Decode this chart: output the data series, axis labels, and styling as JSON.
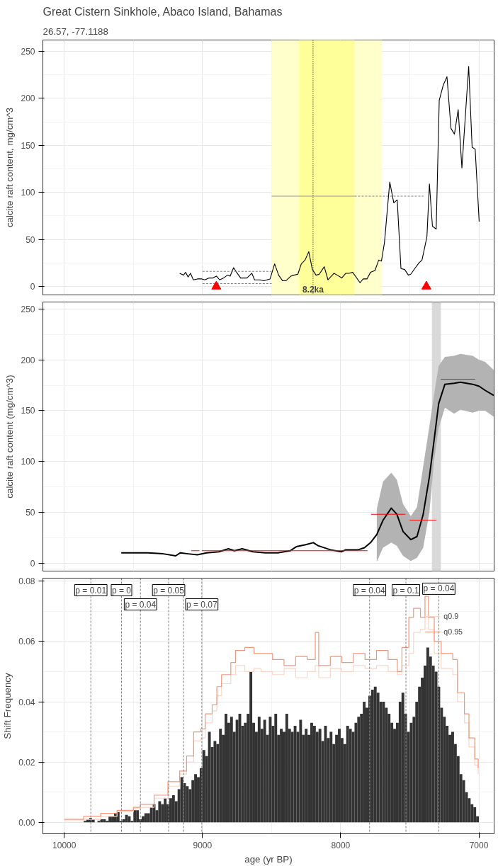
{
  "chart_data": [
    {
      "type": "line",
      "title": "Great Cistern Sinkhole, Abaco Island, Bahamas",
      "subtitle": "26.57, -77.1188",
      "ylabel": "calcite raft content, mg/cm^3",
      "xlim": [
        10155,
        6890
      ],
      "xticks": [
        10000,
        9000,
        8000,
        7000
      ],
      "ylim": [
        -9,
        262
      ],
      "yticks": [
        0,
        50,
        100,
        150,
        200,
        250
      ],
      "tick_labels": "y",
      "grid": true,
      "bands": [
        {
          "axis": "x",
          "from": 8500,
          "to": 7700,
          "color": "#ffffcc"
        },
        {
          "axis": "x",
          "from": 8300,
          "to": 7900,
          "color": "#ffff99"
        }
      ],
      "ref_lines": [
        {
          "axis": "x",
          "value": 8200,
          "label": "8.2ka",
          "color": "#000000",
          "line_style": "dotted"
        }
      ],
      "series": [
        {
          "type": "line",
          "color": "#000000",
          "x": [
            9165,
            9138,
            9122,
            9104,
            9087,
            9066,
            9037,
            9004,
            8984,
            8952,
            8925,
            8899,
            8876,
            8847,
            8820,
            8800,
            8775,
            8753,
            8724,
            8679,
            8643,
            8623,
            8585,
            8556,
            8511,
            8478,
            8449,
            8420,
            8397,
            8361,
            8339,
            8310,
            8285,
            8258,
            8231,
            8205,
            8178,
            8155,
            8119,
            8092,
            8048,
            8025,
            7992,
            7963,
            7940,
            7913,
            7860,
            7837,
            7810,
            7784,
            7752,
            7725,
            7705,
            7683,
            7645,
            7616,
            7591,
            7564,
            7537,
            7510,
            7493,
            7464,
            7434,
            7412,
            7390,
            7376,
            7358,
            7336,
            7309,
            7287,
            7258,
            7231,
            7202,
            7177,
            7150,
            7123,
            7074,
            7049,
            7027,
            6998
          ],
          "values": [
            14,
            12,
            15,
            10,
            14,
            7,
            8,
            8,
            7,
            9,
            9,
            11,
            7,
            9,
            12,
            11,
            20,
            15,
            9,
            9,
            14,
            7,
            7,
            6,
            8,
            24,
            12,
            6,
            6,
            11,
            12,
            13,
            24,
            28,
            37,
            18,
            12,
            13,
            21,
            7,
            14,
            12,
            9,
            14,
            14,
            15,
            4,
            8,
            8,
            15,
            17,
            28,
            27,
            47,
            111,
            89,
            92,
            19,
            18,
            12,
            13,
            19,
            25,
            28,
            43,
            53,
            109,
            64,
            61,
            198,
            214,
            223,
            168,
            162,
            188,
            126,
            234,
            148,
            146,
            69
          ]
        },
        {
          "type": "line",
          "color": "#808080",
          "line_style": "dashed",
          "x": [
            9000,
            8500
          ],
          "values": [
            16,
            16
          ]
        },
        {
          "type": "line",
          "color": "#808080",
          "line_style": "dashed",
          "x": [
            9000,
            8500
          ],
          "values": [
            3,
            3
          ]
        },
        {
          "type": "line",
          "color": "#999999",
          "x": [
            8500,
            7900
          ],
          "values": [
            96,
            96
          ]
        },
        {
          "type": "line",
          "color": "#808080",
          "line_style": "dashed",
          "x": [
            7900,
            7400
          ],
          "values": [
            96,
            96
          ]
        },
        {
          "type": "scatter",
          "color": "#ff0000",
          "marker": "triangle",
          "x": [
            8900,
            7380
          ],
          "values": [
            0,
            0
          ]
        }
      ]
    },
    {
      "type": "line",
      "ylabel": "calcite raft content (mg/cm^3)",
      "xlim": [
        10155,
        6890
      ],
      "xticks": [
        10000,
        9000,
        8000,
        7000
      ],
      "ylim": [
        -8,
        257
      ],
      "yticks": [
        0,
        50,
        100,
        150,
        200,
        250
      ],
      "tick_labels": "y",
      "grid": true,
      "bands": [
        {
          "axis": "x",
          "from": 7340,
          "to": 7275,
          "color": "#d9d9d9"
        }
      ],
      "series": [
        {
          "type": "line",
          "color": "#000000",
          "x": [
            9588,
            9396,
            9284,
            9194,
            9160,
            9104,
            9037,
            8970,
            8881,
            8813,
            8769,
            8713,
            8634,
            8545,
            8455,
            8366,
            8321,
            8254,
            8198,
            8164,
            8075,
            7996,
            7963,
            7873,
            7828,
            7784,
            7739,
            7694,
            7634,
            7594,
            7549,
            7493,
            7448,
            7403,
            7358,
            7325,
            7291,
            7246,
            7179,
            7134,
            7045,
            6998,
            6955,
            6893
          ],
          "values": [
            10,
            10,
            9,
            7,
            10,
            9,
            8,
            10,
            11,
            14,
            12,
            14,
            11,
            10,
            10,
            12,
            16,
            18,
            20,
            17,
            13,
            11,
            13,
            13,
            15,
            20,
            28,
            42,
            54,
            48,
            31,
            23,
            26,
            48,
            85,
            120,
            157,
            176,
            177,
            178,
            176,
            174,
            170,
            165
          ],
          "lower": [
            null,
            null,
            null,
            null,
            null,
            null,
            null,
            null,
            null,
            null,
            null,
            null,
            null,
            null,
            null,
            null,
            null,
            null,
            null,
            null,
            null,
            null,
            null,
            null,
            null,
            null,
            1,
            15,
            20,
            17,
            7,
            2,
            5,
            15,
            50,
            100,
            133,
            153,
            147,
            151,
            148,
            150,
            150,
            144
          ],
          "upper": [
            null,
            null,
            null,
            null,
            null,
            null,
            null,
            null,
            null,
            null,
            null,
            null,
            null,
            null,
            null,
            null,
            null,
            null,
            null,
            null,
            null,
            null,
            null,
            null,
            null,
            null,
            53,
            80,
            89,
            82,
            58,
            46,
            55,
            95,
            135,
            165,
            194,
            203,
            204,
            206,
            204,
            200,
            198,
            190
          ]
        },
        {
          "type": "line",
          "color": "#ff0000",
          "x": [
            9082,
            9022
          ],
          "values": [
            12,
            12
          ]
        },
        {
          "type": "line",
          "color": "#ff0000",
          "x": [
            9004,
            7806
          ],
          "values": [
            12,
            12
          ]
        },
        {
          "type": "line",
          "color": "#ff0000",
          "x": [
            7779,
            7531
          ],
          "values": [
            48,
            48
          ]
        },
        {
          "type": "line",
          "color": "#ff0000",
          "x": [
            7501,
            7307
          ],
          "values": [
            42,
            42
          ]
        },
        {
          "type": "line",
          "color": "#ff0000",
          "x": [
            7276,
            7027
          ],
          "values": [
            181,
            181
          ]
        }
      ]
    },
    {
      "type": "histogram",
      "xlabel": "age (yr BP)",
      "ylabel": "Shift Frequency",
      "xlim": [
        10155,
        6890
      ],
      "xticks": [
        10000,
        9000,
        8000,
        7000
      ],
      "ylim": [
        -0.0038,
        0.081
      ],
      "yticks": [
        {
          "value": 0,
          "label": "0.00"
        },
        0.02,
        0.04,
        0.06,
        0.08
      ],
      "grid": true,
      "legend": "top right",
      "color": "#333333",
      "bins": [
        9860,
        9840,
        9820,
        9800,
        9780,
        9760,
        9740,
        9720,
        9700,
        9680,
        9660,
        9640,
        9620,
        9600,
        9580,
        9560,
        9540,
        9520,
        9500,
        9480,
        9460,
        9440,
        9420,
        9400,
        9380,
        9360,
        9340,
        9320,
        9300,
        9280,
        9260,
        9240,
        9220,
        9200,
        9180,
        9160,
        9140,
        9120,
        9100,
        9080,
        9060,
        9040,
        9020,
        9000,
        8980,
        8960,
        8940,
        8920,
        8900,
        8880,
        8860,
        8840,
        8820,
        8800,
        8780,
        8760,
        8740,
        8720,
        8700,
        8680,
        8660,
        8640,
        8620,
        8600,
        8580,
        8560,
        8540,
        8520,
        8500,
        8480,
        8460,
        8440,
        8420,
        8400,
        8380,
        8360,
        8340,
        8320,
        8300,
        8280,
        8260,
        8240,
        8220,
        8200,
        8180,
        8160,
        8140,
        8120,
        8100,
        8080,
        8060,
        8040,
        8020,
        8000,
        7980,
        7960,
        7940,
        7920,
        7900,
        7880,
        7860,
        7840,
        7820,
        7800,
        7780,
        7760,
        7740,
        7720,
        7700,
        7680,
        7660,
        7640,
        7620,
        7600,
        7580,
        7560,
        7540,
        7520,
        7500,
        7480,
        7460,
        7440,
        7420,
        7400,
        7380,
        7360,
        7340,
        7320,
        7300,
        7280,
        7260,
        7240,
        7220,
        7200,
        7180,
        7160,
        7140,
        7120,
        7100,
        7080,
        7060,
        7040,
        7020,
        7000
      ],
      "values": [
        0.0005,
        0.001,
        0.0015,
        0.001,
        0,
        0.0005,
        0.001,
        0.001,
        0.0005,
        0.002,
        0.002,
        0.003,
        0.0035,
        0.0005,
        0.001,
        0.0025,
        0.002,
        0.0005,
        0.004,
        0.004,
        0.001,
        0.002,
        0.003,
        0.003,
        0.005,
        0.006,
        0.004,
        0.007,
        0.006,
        0.008,
        0.006,
        0.008,
        0.009,
        0.007,
        0.011,
        0.015,
        0.013,
        0.012,
        0.011,
        0.014,
        0.016,
        0.015,
        0.018,
        0.024,
        0.022,
        0.03,
        0.025,
        0.027,
        0.026,
        0.031,
        0.029,
        0.036,
        0.033,
        0.035,
        0.03,
        0.034,
        0.036,
        0.032,
        0.033,
        0.036,
        0.05,
        0.033,
        0.03,
        0.035,
        0.031,
        0.034,
        0.029,
        0.035,
        0.032,
        0.036,
        0.029,
        0.031,
        0.03,
        0.036,
        0.031,
        0.03,
        0.032,
        0.03,
        0.034,
        0.029,
        0.031,
        0.029,
        0.033,
        0.032,
        0.03,
        0.031,
        0.027,
        0.032,
        0.028,
        0.03,
        0.026,
        0.029,
        0.031,
        0.028,
        0.026,
        0.032,
        0.031,
        0.03,
        0.033,
        0.035,
        0.036,
        0.04,
        0.038,
        0.042,
        0.044,
        0.045,
        0.043,
        0.04,
        0.04,
        0.038,
        0.036,
        0.033,
        0.031,
        0.033,
        0.04,
        0.043,
        0.036,
        0.03,
        0.033,
        0.035,
        0.04,
        0.045,
        0.048,
        0.052,
        0.058,
        0.055,
        0.052,
        0.05,
        0.045,
        0.038,
        0.035,
        0.032,
        0.029,
        0.03,
        0.026,
        0.022,
        0.016,
        0.014,
        0.01,
        0.008,
        0.006,
        0.005,
        0.002
      ],
      "ref_lines": [
        {
          "axis": "x",
          "value": 9808,
          "color": "#808080",
          "line_style": "dashed"
        },
        {
          "axis": "x",
          "value": 9586,
          "color": "#808080",
          "line_style": "dashed"
        },
        {
          "axis": "x",
          "value": 9449,
          "color": "#808080",
          "line_style": "dashed"
        },
        {
          "axis": "x",
          "value": 9245,
          "color": "#808080",
          "line_style": "dashed"
        },
        {
          "axis": "x",
          "value": 9136,
          "color": "#808080",
          "line_style": "dashed"
        },
        {
          "axis": "x",
          "value": 9005,
          "color": "#808080",
          "line_style": "dashed"
        },
        {
          "axis": "x",
          "value": 7791,
          "color": "#808080",
          "line_style": "dashed"
        },
        {
          "axis": "x",
          "value": 7528,
          "color": "#808080",
          "line_style": "dashed"
        },
        {
          "axis": "x",
          "value": 7290,
          "color": "#808080",
          "line_style": "dashed"
        }
      ],
      "annotations": [
        {
          "text": "p = 0.01",
          "x": 9808,
          "y": 0.077
        },
        {
          "text": "p = 0",
          "x": 9586,
          "y": 0.077
        },
        {
          "text": "p = 0.04",
          "x": 9449,
          "y": 0.077
        },
        {
          "text": "p = 0.05",
          "x": 9245,
          "y": 0.077
        },
        {
          "text": "p = 0.07",
          "x": 9005,
          "y": 0.077
        },
        {
          "text": "p = 0.04",
          "x": 7791,
          "y": 0.077
        },
        {
          "text": "p = 0.1",
          "x": 7528,
          "y": 0.077
        },
        {
          "text": "p = 0.04",
          "x": 7290,
          "y": 0.0775
        }
      ],
      "series": [
        {
          "type": "step",
          "name": "q0.9",
          "color": "#fcd5c8",
          "x": [
            10000,
            9860,
            9736,
            9618,
            9500,
            9450,
            9350,
            9250,
            9165,
            9115,
            9064,
            9013,
            8980,
            8930,
            8896,
            8862,
            8795,
            8761,
            8694,
            8627,
            8577,
            8493,
            8410,
            8326,
            8242,
            8184,
            8159,
            8075,
            7992,
            7908,
            7824,
            7741,
            7657,
            7590,
            7557,
            7507,
            7473,
            7423,
            7390,
            7365,
            7323,
            7273,
            7189,
            7155,
            7105,
            7072,
            7030,
            7005
          ],
          "values": [
            0.0005,
            0.001,
            0.002,
            0.0035,
            0.0045,
            0.005,
            0.008,
            0.012,
            0.016,
            0.02,
            0.027,
            0.028,
            0.033,
            0.037,
            0.042,
            0.046,
            0.049,
            0.052,
            0.05,
            0.051,
            0.05,
            0.049,
            0.051,
            0.048,
            0.05,
            0.052,
            0.048,
            0.051,
            0.05,
            0.052,
            0.051,
            0.052,
            0.05,
            0.049,
            0.052,
            0.056,
            0.063,
            0.064,
            0.068,
            0.064,
            0.056,
            0.051,
            0.049,
            0.04,
            0.033,
            0.025,
            0.019,
            0.016
          ]
        },
        {
          "type": "step",
          "name": "q0.95",
          "color": "#f4967a",
          "x": [
            10000,
            9860,
            9736,
            9618,
            9500,
            9450,
            9350,
            9250,
            9165,
            9115,
            9064,
            9013,
            8980,
            8930,
            8896,
            8862,
            8795,
            8761,
            8694,
            8627,
            8577,
            8493,
            8410,
            8326,
            8242,
            8184,
            8159,
            8075,
            7992,
            7908,
            7824,
            7741,
            7657,
            7590,
            7557,
            7507,
            7473,
            7423,
            7390,
            7365,
            7323,
            7273,
            7189,
            7155,
            7105,
            7072,
            7030,
            7005
          ],
          "values": [
            0.001,
            0.002,
            0.003,
            0.004,
            0.005,
            0.006,
            0.009,
            0.0135,
            0.017,
            0.022,
            0.03,
            0.031,
            0.036,
            0.039,
            0.045,
            0.049,
            0.053,
            0.057,
            0.058,
            0.056,
            0.056,
            0.054,
            0.052,
            0.055,
            0.054,
            0.063,
            0.052,
            0.055,
            0.053,
            0.056,
            0.054,
            0.057,
            0.054,
            0.05,
            0.058,
            0.068,
            0.071,
            0.068,
            0.075,
            0.068,
            0.06,
            0.056,
            0.054,
            0.043,
            0.036,
            0.028,
            0.021,
            0.018
          ]
        }
      ]
    }
  ]
}
